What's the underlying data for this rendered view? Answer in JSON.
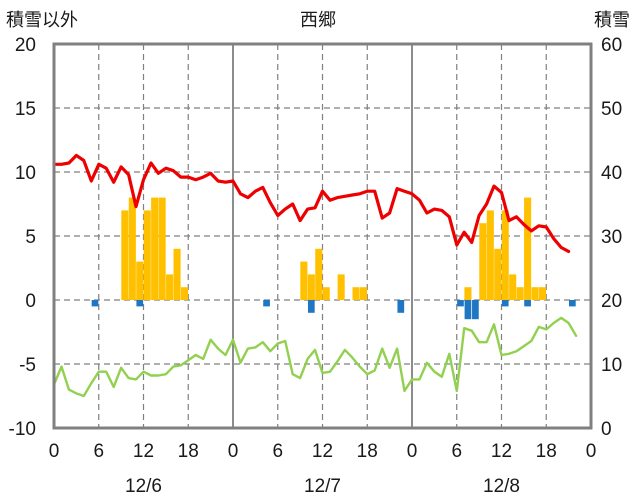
{
  "chart_data": {
    "type": "bar+line",
    "title": "西郷",
    "ylabel_left": "積雪以外",
    "ylabel_right": "積雪",
    "ylim_left": [
      -10,
      20
    ],
    "ylim_right": [
      0,
      60
    ],
    "yticks_left": [
      "20",
      "15",
      "10",
      "5",
      "0",
      "-5",
      "-10"
    ],
    "yticks_right": [
      "60",
      "50",
      "40",
      "30",
      "20",
      "10",
      "0"
    ],
    "xlim_hours": [
      0,
      72
    ],
    "xticks": [
      "0",
      "6",
      "12",
      "18",
      "0",
      "6",
      "12",
      "18",
      "0",
      "6",
      "12",
      "18",
      "0"
    ],
    "dates": [
      "12/6",
      "12/7",
      "12/8"
    ],
    "grid": true,
    "colors": {
      "red_line": "#ee0000",
      "green_line": "#92d050",
      "orange_bars": "#ffc000",
      "blue_bars": "#1f77c4",
      "purple_line": "#7030a0",
      "frame": "#808080",
      "grid": "#808080"
    },
    "series": [
      {
        "color": "red",
        "axis": "left",
        "kind": "line",
        "x": [
          0,
          1,
          2,
          3,
          4,
          5,
          6,
          7,
          8,
          9,
          10,
          11,
          12,
          13,
          14,
          15,
          16,
          17,
          18,
          19,
          20,
          21,
          22,
          23,
          24,
          25,
          26,
          27,
          28,
          29,
          30,
          31,
          32,
          33,
          34,
          35,
          36,
          37,
          38,
          39,
          40,
          41,
          42,
          43,
          44,
          45,
          46,
          47,
          48,
          49,
          50,
          51,
          52,
          53,
          54,
          55,
          56,
          57,
          58,
          59,
          60,
          61,
          62,
          63,
          64,
          65,
          66,
          67,
          68,
          69,
          70,
          71
        ],
        "values": [
          10.6,
          10.6,
          10.7,
          11.3,
          10.9,
          9.3,
          10.6,
          10.3,
          9.2,
          10.4,
          9.8,
          7.3,
          9.4,
          10.7,
          9.9,
          10.3,
          10.1,
          9.6,
          9.6,
          9.4,
          9.6,
          9.9,
          9.3,
          9.2,
          9.3,
          8.3,
          8.0,
          8.5,
          8.8,
          7.6,
          6.6,
          7.1,
          7.5,
          6.2,
          7.1,
          7.2,
          8.5,
          7.8,
          8.0,
          8.1,
          8.2,
          8.3,
          8.5,
          8.5,
          6.4,
          6.8,
          8.7,
          8.5,
          8.3,
          7.8,
          6.8,
          7.1,
          7.0,
          6.5,
          4.3,
          5.3,
          4.5,
          6.6,
          7.5,
          8.9,
          8.4,
          6.2,
          6.5,
          5.9,
          5.4,
          5.8,
          5.7,
          4.8,
          4.1,
          3.8,
          null,
          null
        ]
      },
      {
        "color": "green",
        "axis": "left",
        "kind": "line",
        "x": [
          0,
          1,
          2,
          3,
          4,
          5,
          6,
          7,
          8,
          9,
          10,
          11,
          12,
          13,
          14,
          15,
          16,
          17,
          18,
          19,
          20,
          21,
          22,
          23,
          24,
          25,
          26,
          27,
          28,
          29,
          30,
          31,
          32,
          33,
          34,
          35,
          36,
          37,
          38,
          39,
          40,
          41,
          42,
          43,
          44,
          45,
          46,
          47,
          48,
          49,
          50,
          51,
          52,
          53,
          54,
          55,
          56,
          57,
          58,
          59,
          60,
          61,
          62,
          63,
          64,
          65,
          66,
          67,
          68,
          69,
          70,
          71
        ],
        "values": [
          -6.6,
          -5.2,
          -7.0,
          -7.3,
          -7.5,
          -6.5,
          -5.6,
          -5.6,
          -6.8,
          -5.3,
          -6.1,
          -6.2,
          -5.6,
          -5.9,
          -5.9,
          -5.8,
          -5.2,
          -5.1,
          -4.7,
          -4.3,
          -4.6,
          -3.1,
          -3.8,
          -4.3,
          -3.1,
          -4.9,
          -3.8,
          -3.7,
          -3.3,
          -4.0,
          -3.4,
          -3.2,
          -5.8,
          -6.1,
          -4.6,
          -3.9,
          -5.7,
          -5.6,
          -4.8,
          -3.9,
          -4.5,
          -5.2,
          -5.8,
          -5.5,
          -3.8,
          -5.3,
          -3.8,
          -7.1,
          -6.2,
          -6.2,
          -4.9,
          -5.6,
          -6.0,
          -4.2,
          -7.1,
          -2.2,
          -2.4,
          -3.3,
          -3.3,
          -1.9,
          -4.3,
          -4.2,
          -4.0,
          -3.6,
          -3.2,
          -2.1,
          -2.3,
          -1.8,
          -1.4,
          -1.8,
          -2.8,
          null
        ]
      },
      {
        "color": "purple",
        "axis": "left",
        "kind": "line",
        "x": [
          0,
          72
        ],
        "values": [
          -10,
          -10
        ]
      },
      {
        "color": "orange",
        "axis": "left",
        "kind": "bar",
        "x": [
          9,
          10,
          11,
          12,
          13,
          14,
          15,
          16,
          17,
          33,
          34,
          35,
          36,
          38,
          40,
          41,
          55,
          57,
          58,
          59,
          60,
          61,
          62,
          63,
          64,
          65
        ],
        "values": [
          7.0,
          8.0,
          3.0,
          7.0,
          8.0,
          8.0,
          2.0,
          4.0,
          1.0,
          3.0,
          2.0,
          4.0,
          1.0,
          2.0,
          1.0,
          1.0,
          1.0,
          6.0,
          7.0,
          4.0,
          7.0,
          2.0,
          1.0,
          8.0,
          1.0,
          1.0
        ]
      },
      {
        "color": "blue",
        "axis": "left",
        "kind": "bar",
        "x": [
          5,
          11,
          28,
          34,
          46,
          54,
          55,
          56,
          60,
          63,
          69
        ],
        "values": [
          -0.5,
          -0.5,
          -0.5,
          -1.0,
          -1.0,
          -0.5,
          -1.5,
          -1.5,
          -0.5,
          -0.5,
          -0.5
        ]
      }
    ]
  }
}
